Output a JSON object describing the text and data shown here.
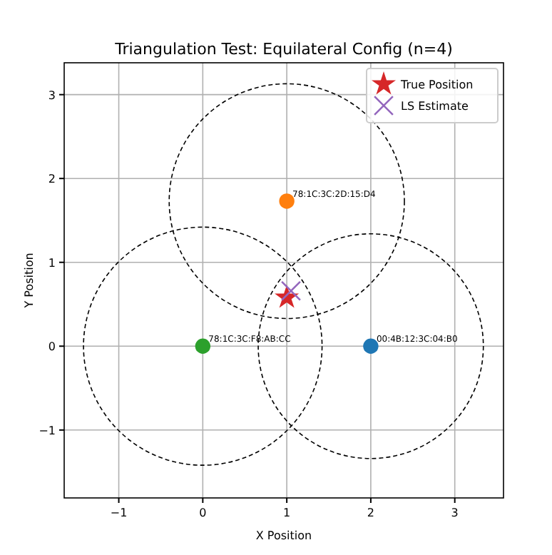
{
  "chart_data": {
    "type": "scatter",
    "title": "Triangulation Test: Equilateral Config (n=4)",
    "xlabel": "X Position",
    "ylabel": "Y Position",
    "xlim": [
      -1.65,
      3.58
    ],
    "ylim": [
      -1.81,
      3.38
    ],
    "xticks": [
      -1,
      0,
      1,
      2,
      3
    ],
    "yticks": [
      -1,
      0,
      1,
      2,
      3
    ],
    "grid": true,
    "legend": "top right",
    "series": [
      {
        "marker": "circle",
        "x": [
          2,
          1,
          0
        ],
        "values": [
          0,
          1.73,
          0
        ],
        "colors": [
          "#1f77b4",
          "#ff7f0e",
          "#2ca02c"
        ]
      },
      {
        "name": "True Position",
        "marker": "star",
        "color": "#d62728",
        "x": [
          1
        ],
        "values": [
          0.58
        ]
      },
      {
        "name": "LS Estimate",
        "marker": "cross",
        "color": "#9467bd",
        "x": [
          1.05
        ],
        "values": [
          0.66
        ]
      }
    ],
    "annotations": [
      {
        "text": "00:4B:12:3C:04:B0",
        "x": 2,
        "y": 0
      },
      {
        "text": "78:1C:3C:2D:15:D4",
        "x": 1,
        "y": 1.73
      },
      {
        "text": "78:1C:3C:F8:AB:CC",
        "x": 0,
        "y": 0
      }
    ]
  }
}
